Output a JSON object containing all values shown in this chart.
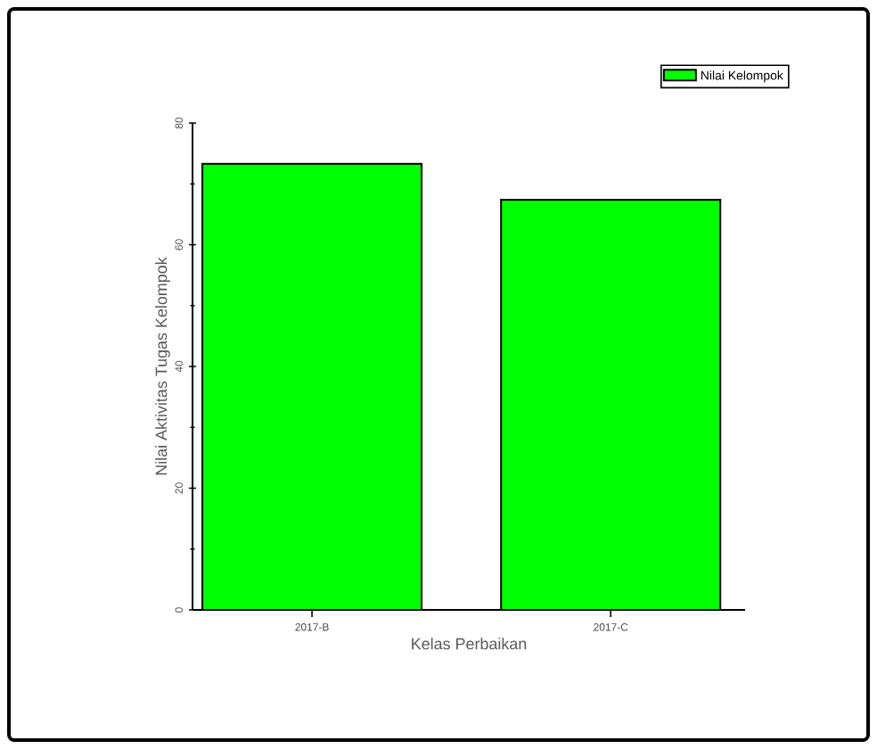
{
  "chart_data": {
    "type": "bar",
    "xlabel": "Kelas Perbaikan",
    "ylabel": "Nilai Aktivitas Tugas Kelompok",
    "categories": [
      "2017-B",
      "2017-C"
    ],
    "series": [
      {
        "name": "Nilai Kelompok",
        "color": "#00ff00",
        "values": [
          73.3,
          67.4
        ]
      }
    ],
    "ylim": [
      0,
      80
    ],
    "yticks": [
      0,
      20,
      40,
      60,
      80
    ],
    "legend": "top right",
    "grid": false
  }
}
